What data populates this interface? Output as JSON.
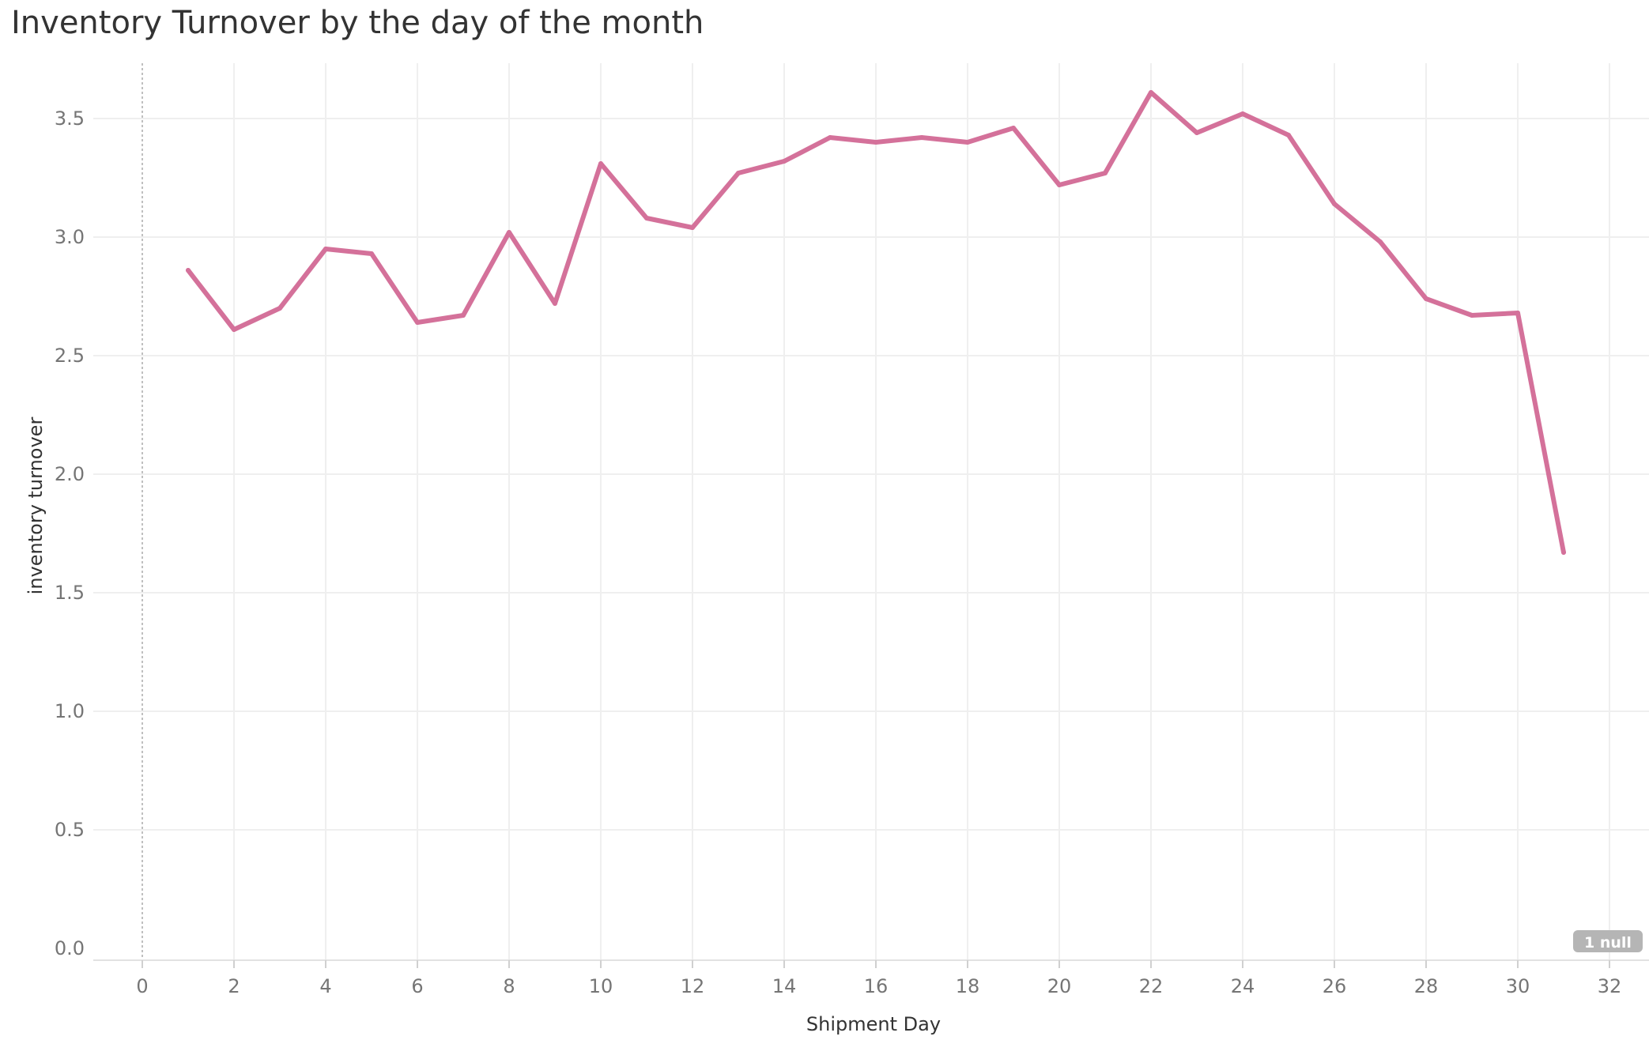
{
  "chart_data": {
    "type": "line",
    "title": "Inventory Turnover by the day of the month",
    "xlabel": "Shipment Day",
    "ylabel": "inventory turnover",
    "xlim": [
      -1,
      33
    ],
    "ylim": [
      -0.05,
      3.75
    ],
    "x_ticks": [
      "0",
      "2",
      "4",
      "6",
      "8",
      "10",
      "12",
      "14",
      "16",
      "18",
      "20",
      "22",
      "24",
      "26",
      "28",
      "30",
      "32"
    ],
    "y_ticks": [
      "0.0",
      "0.5",
      "1.0",
      "1.5",
      "2.0",
      "2.5",
      "3.0",
      "3.5"
    ],
    "grid": true,
    "series": [
      {
        "color": "#d4719a",
        "x": [
          1,
          2,
          3,
          4,
          5,
          6,
          7,
          8,
          9,
          10,
          11,
          12,
          13,
          14,
          15,
          16,
          17,
          18,
          19,
          20,
          21,
          22,
          23,
          24,
          25,
          26,
          27,
          28,
          29,
          30,
          31
        ],
        "values": [
          2.86,
          2.61,
          2.7,
          2.95,
          2.93,
          2.64,
          2.67,
          3.02,
          2.72,
          3.31,
          3.08,
          3.04,
          3.27,
          3.32,
          3.42,
          3.4,
          3.42,
          3.4,
          3.46,
          3.22,
          3.27,
          3.61,
          3.44,
          3.52,
          3.43,
          3.14,
          2.98,
          2.74,
          2.67,
          2.68,
          1.67
        ]
      }
    ],
    "null_indicator": "1 null"
  }
}
